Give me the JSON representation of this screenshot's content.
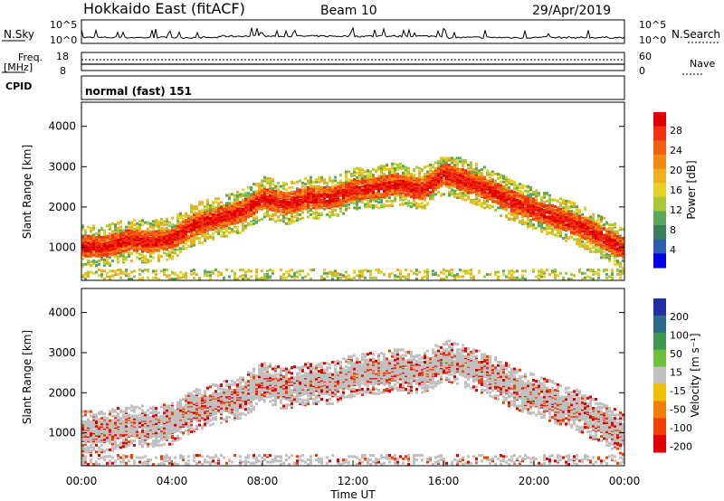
{
  "header": {
    "station": "Hokkaido East (fitACF)",
    "beam": "Beam 10",
    "date": "29/Apr/2019"
  },
  "chart_data": [
    {
      "type": "line",
      "name": "noise-panel",
      "left_label": "N.Sky",
      "right_label": "N.Search",
      "left_ticks": [
        "10^5",
        "10^0"
      ],
      "right_ticks": [
        "10^5",
        "10^0"
      ]
    },
    {
      "type": "line",
      "name": "frequency-panel",
      "left_label": "Freq.",
      "left_unit": "[MHz]",
      "right_label": "Nave",
      "left_ticks": [
        "18",
        "8"
      ],
      "right_ticks": [
        "60",
        "0"
      ],
      "freq_mhz": 10.5,
      "nave": 20
    },
    {
      "type": "table",
      "name": "cpid-panel",
      "label": "CPID",
      "value": "normal (fast) 151"
    },
    {
      "type": "heatmap",
      "name": "power-panel",
      "ylabel": "Slant Range [km]",
      "ylim": [
        180,
        4600
      ],
      "yticks": [
        1000,
        2000,
        3000,
        4000
      ],
      "colorbar_label": "Power [dB]",
      "colorbar_ticks": [
        "28",
        "24",
        "20",
        "16",
        "12",
        "8",
        "4"
      ],
      "colors": [
        "#0000e6",
        "#2a5fb0",
        "#3a7f5a",
        "#5aa85a",
        "#a8c83a",
        "#e8d020",
        "#f0b020",
        "#f08a10",
        "#f06010",
        "#f03010",
        "#e00000"
      ],
      "band": [
        [
          0,
          1000
        ],
        [
          1,
          980
        ],
        [
          2,
          1150
        ],
        [
          3,
          1100
        ],
        [
          4,
          1200
        ],
        [
          5,
          1550
        ],
        [
          6,
          1700
        ],
        [
          7,
          1850
        ],
        [
          8,
          2200
        ],
        [
          9,
          2050
        ],
        [
          10,
          2200
        ],
        [
          11,
          2200
        ],
        [
          12,
          2400
        ],
        [
          13,
          2450
        ],
        [
          14,
          2550
        ],
        [
          15,
          2400
        ],
        [
          16,
          2800
        ],
        [
          17,
          2600
        ],
        [
          18,
          2400
        ],
        [
          19,
          2100
        ],
        [
          20,
          1900
        ],
        [
          21,
          1700
        ],
        [
          22,
          1500
        ],
        [
          23,
          1200
        ],
        [
          24,
          900
        ]
      ]
    },
    {
      "type": "heatmap",
      "name": "velocity-panel",
      "ylabel": "Slant Range [km]",
      "ylim": [
        180,
        4600
      ],
      "yticks": [
        1000,
        2000,
        3000,
        4000
      ],
      "colorbar_label": "Velocity [m s⁻¹]",
      "colorbar_ticks": [
        "200",
        "100",
        "50",
        "15",
        "-15",
        "-50",
        "-100",
        "-200"
      ],
      "colors": [
        "#2030a0",
        "#2a6a8a",
        "#3a9a50",
        "#70c040",
        "#c0c0c0",
        "#f0c000",
        "#f08000",
        "#f04000",
        "#e00000"
      ],
      "xlabel": "Time UT",
      "xticks": [
        "00:00",
        "04:00",
        "08:00",
        "12:00",
        "16:00",
        "20:00",
        "00:00"
      ],
      "xlim": [
        0,
        24
      ]
    }
  ]
}
